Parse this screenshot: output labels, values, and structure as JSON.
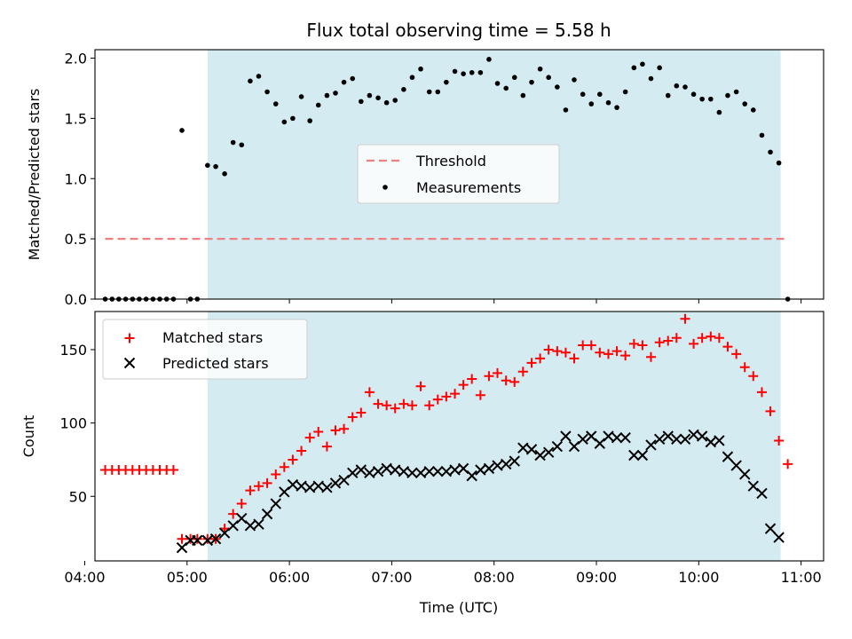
{
  "figure": {
    "title": "Flux total observing time = 5.58 h"
  },
  "colors": {
    "shade": "#d4ebf1",
    "threshold": "#f08080",
    "matched": "#ff0000",
    "predicted": "#000000",
    "measurements": "#000000"
  },
  "chart_data": [
    {
      "type": "scatter",
      "ylabel": "Matched/Predicted stars",
      "xlim": [
        4.1,
        11.22
      ],
      "ylim": [
        0,
        2.07
      ],
      "yticks": [
        0.0,
        0.5,
        1.0,
        1.5,
        2.0
      ],
      "ytick_labels": [
        "0.0",
        "0.5",
        "1.0",
        "1.5",
        "2.0"
      ],
      "shaded_region": [
        5.2,
        10.8
      ],
      "legend": {
        "position": "center",
        "entries": [
          "Threshold",
          "Measurements"
        ]
      },
      "threshold": {
        "name": "Threshold",
        "value": 0.5,
        "x_range": [
          4.2,
          10.87
        ]
      },
      "series": [
        {
          "name": "Measurements",
          "x": [
            4.2,
            4.267,
            4.333,
            4.4,
            4.467,
            4.533,
            4.6,
            4.667,
            4.733,
            4.8,
            4.867,
            4.95,
            5.033,
            5.1,
            5.2,
            5.28,
            5.367,
            5.45,
            5.533,
            5.617,
            5.7,
            5.783,
            5.867,
            5.95,
            6.033,
            6.117,
            6.2,
            6.283,
            6.367,
            6.45,
            6.533,
            6.617,
            6.7,
            6.783,
            6.867,
            6.95,
            7.033,
            7.117,
            7.2,
            7.283,
            7.367,
            7.45,
            7.533,
            7.617,
            7.7,
            7.783,
            7.867,
            7.95,
            8.033,
            8.117,
            8.2,
            8.283,
            8.367,
            8.45,
            8.533,
            8.617,
            8.7,
            8.783,
            8.867,
            8.95,
            9.033,
            9.117,
            9.2,
            9.283,
            9.367,
            9.45,
            9.533,
            9.617,
            9.7,
            9.783,
            9.867,
            9.95,
            10.033,
            10.117,
            10.2,
            10.283,
            10.367,
            10.45,
            10.533,
            10.617,
            10.7,
            10.783,
            10.87
          ],
          "y": [
            0,
            0,
            0,
            0,
            0,
            0,
            0,
            0,
            0,
            0,
            0,
            1.4,
            0,
            0,
            1.11,
            1.1,
            1.04,
            1.3,
            1.28,
            1.81,
            1.85,
            1.72,
            1.62,
            1.47,
            1.5,
            1.68,
            1.48,
            1.61,
            1.69,
            1.71,
            1.8,
            1.83,
            1.64,
            1.69,
            1.67,
            1.63,
            1.65,
            1.74,
            1.84,
            1.91,
            1.72,
            1.72,
            1.8,
            1.89,
            1.87,
            1.88,
            1.88,
            1.99,
            1.79,
            1.75,
            1.84,
            1.69,
            1.8,
            1.91,
            1.84,
            1.76,
            1.57,
            1.82,
            1.7,
            1.62,
            1.7,
            1.63,
            1.59,
            1.72,
            1.92,
            1.95,
            1.83,
            1.92,
            1.69,
            1.77,
            1.76,
            1.7,
            1.66,
            1.66,
            1.55,
            1.69,
            1.72,
            1.62,
            1.57,
            1.36,
            1.22,
            1.13,
            0
          ]
        }
      ]
    },
    {
      "type": "scatter",
      "xlabel": "Time (UTC)",
      "ylabel": "Count",
      "xlim": [
        4.1,
        11.22
      ],
      "ylim": [
        6,
        176
      ],
      "xticks": [
        4,
        5,
        6,
        7,
        8,
        9,
        10,
        11
      ],
      "xtick_labels": [
        "04:00",
        "05:00",
        "06:00",
        "07:00",
        "08:00",
        "09:00",
        "10:00",
        "11:00"
      ],
      "yticks": [
        50,
        100,
        150
      ],
      "ytick_labels": [
        "50",
        "100",
        "150"
      ],
      "shaded_region": [
        5.2,
        10.8
      ],
      "legend": {
        "position": "top-left",
        "entries": [
          "Matched stars",
          "Predicted stars"
        ]
      },
      "series": [
        {
          "name": "Matched stars",
          "x": [
            4.2,
            4.267,
            4.333,
            4.4,
            4.467,
            4.533,
            4.6,
            4.667,
            4.733,
            4.8,
            4.867,
            4.95,
            5.033,
            5.1,
            5.2,
            5.28,
            5.367,
            5.45,
            5.533,
            5.617,
            5.7,
            5.783,
            5.867,
            5.95,
            6.033,
            6.117,
            6.2,
            6.283,
            6.367,
            6.45,
            6.533,
            6.617,
            6.7,
            6.783,
            6.867,
            6.95,
            7.033,
            7.117,
            7.2,
            7.283,
            7.367,
            7.45,
            7.533,
            7.617,
            7.7,
            7.783,
            7.867,
            7.95,
            8.033,
            8.117,
            8.2,
            8.283,
            8.367,
            8.45,
            8.533,
            8.617,
            8.7,
            8.783,
            8.867,
            8.95,
            9.033,
            9.117,
            9.2,
            9.283,
            9.367,
            9.45,
            9.533,
            9.617,
            9.7,
            9.783,
            9.867,
            9.95,
            10.033,
            10.117,
            10.2,
            10.283,
            10.367,
            10.45,
            10.533,
            10.617,
            10.7,
            10.783,
            10.87
          ],
          "y": [
            68,
            68,
            68,
            68,
            68,
            68,
            68,
            68,
            68,
            68,
            68,
            21,
            21,
            21,
            21,
            21,
            28,
            38,
            45,
            54,
            57,
            59,
            65,
            70,
            75,
            81,
            90,
            94,
            84,
            95,
            96,
            104,
            107,
            121,
            113,
            112,
            110,
            113,
            112,
            125,
            112,
            116,
            118,
            120,
            126,
            130,
            119,
            132,
            134,
            129,
            128,
            135,
            141,
            144,
            150,
            149,
            148,
            144,
            153,
            153,
            148,
            147,
            149,
            146,
            154,
            153,
            145,
            155,
            156,
            158,
            171,
            154,
            158,
            159,
            158,
            152,
            147,
            138,
            132,
            121,
            108,
            88,
            72
          ]
        },
        {
          "name": "Predicted stars",
          "x": [
            4.95,
            5.033,
            5.1,
            5.2,
            5.28,
            5.367,
            5.45,
            5.533,
            5.617,
            5.7,
            5.783,
            5.867,
            5.95,
            6.033,
            6.117,
            6.2,
            6.283,
            6.367,
            6.45,
            6.533,
            6.617,
            6.7,
            6.783,
            6.867,
            6.95,
            7.033,
            7.117,
            7.2,
            7.283,
            7.367,
            7.45,
            7.533,
            7.617,
            7.7,
            7.783,
            7.867,
            7.95,
            8.033,
            8.117,
            8.2,
            8.283,
            8.367,
            8.45,
            8.533,
            8.617,
            8.7,
            8.783,
            8.867,
            8.95,
            9.033,
            9.117,
            9.2,
            9.283,
            9.367,
            9.45,
            9.533,
            9.617,
            9.7,
            9.783,
            9.867,
            9.95,
            10.033,
            10.117,
            10.2,
            10.283,
            10.367,
            10.45,
            10.533,
            10.617,
            10.7,
            10.783
          ],
          "y": [
            15,
            20,
            20,
            20,
            21,
            25,
            30,
            35,
            30,
            31,
            38,
            45,
            53,
            58,
            57,
            56,
            57,
            56,
            59,
            61,
            66,
            68,
            66,
            67,
            69,
            68,
            67,
            66,
            66,
            67,
            67,
            67,
            68,
            69,
            64,
            68,
            69,
            71,
            72,
            74,
            83,
            82,
            78,
            80,
            84,
            91,
            84,
            89,
            91,
            86,
            91,
            90,
            90,
            78,
            78,
            85,
            89,
            91,
            89,
            89,
            92,
            91,
            87,
            88,
            77,
            71,
            65,
            57,
            52,
            28,
            22
          ]
        }
      ]
    }
  ]
}
